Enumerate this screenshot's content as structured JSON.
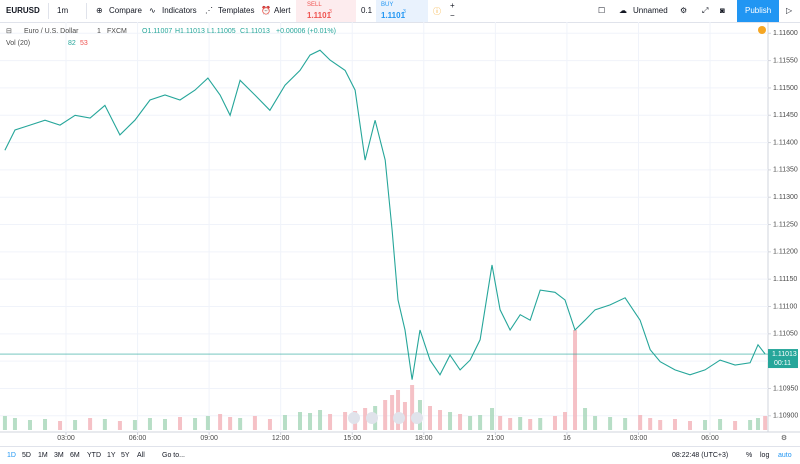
{
  "toolbar": {
    "symbol": "EURUSD",
    "interval": "1m",
    "compare": "Compare",
    "indicators": "Indicators",
    "templates": "Templates",
    "alert": "Alert",
    "sell": "SELL",
    "sell_price": "1.1101",
    "sell_sup": "3",
    "spread": "0.1",
    "buy": "BUY",
    "buy_price": "1.1101",
    "buy_sup": "3",
    "layout": "Unnamed",
    "publish": "Publish"
  },
  "legend": {
    "name": "Euro / U.S. Dollar",
    "interval": "1",
    "exchange": "FXCM",
    "open": "O1.11007",
    "high": "H1.11013",
    "low": "L1.11005",
    "close": "C1.11013",
    "change": "+0.00006 (+0.01%)",
    "volume": "Vol (20)",
    "vol_a": "82",
    "vol_b": "53"
  },
  "chart_data": {
    "type": "line",
    "x": [
      0.44,
      0.86,
      1.49,
      2.12,
      2.75,
      3.38,
      4.01,
      4.63,
      5.26,
      5.89,
      6.52,
      7.15,
      7.78,
      8.41,
      8.95,
      9.46,
      9.88,
      10.3,
      10.92,
      11.55,
      12.18,
      12.81,
      13.23,
      13.65,
      14.07,
      14.7,
      15.12,
      15.54,
      15.96,
      16.38,
      16.67,
      16.92,
      17.21,
      17.51,
      17.84,
      18.26,
      18.68,
      19.1,
      19.52,
      19.94,
      20.36,
      20.86,
      21.2,
      21.62,
      22.04,
      22.46,
      22.88,
      23.5,
      23.92,
      24.34,
      24.76,
      25.18,
      25.81,
      26.44,
      27.07,
      27.49,
      27.91,
      28.53,
      29.16,
      29.79,
      30.42,
      31.05,
      31.68,
      32.01,
      32.31
    ],
    "series": [
      {
        "name": "EURUSD",
        "color": "#26a69a",
        "values": [
          1.11386,
          1.11423,
          1.11432,
          1.11441,
          1.11432,
          1.1145,
          1.11445,
          1.11468,
          1.11414,
          1.11441,
          1.11478,
          1.11487,
          1.11478,
          1.11496,
          1.11518,
          1.11487,
          1.1145,
          1.11514,
          1.11487,
          1.11459,
          1.11505,
          1.11532,
          1.1156,
          1.11569,
          1.11551,
          1.11532,
          1.11496,
          1.11368,
          1.11441,
          1.11368,
          1.1124,
          1.11112,
          1.11057,
          1.10966,
          1.11057,
          1.11002,
          1.10975,
          1.11011,
          1.10984,
          1.11002,
          1.11039,
          1.11176,
          1.11094,
          1.11057,
          1.11085,
          1.11075,
          1.1113,
          1.11126,
          1.11112,
          1.11057,
          1.11075,
          1.11094,
          1.11103,
          1.11116,
          1.11075,
          1.11021,
          1.10999,
          1.10984,
          1.10975,
          1.10984,
          1.11002,
          1.10993,
          1.10997,
          1.1103,
          1.11013
        ]
      },
      {
        "name": "Vol",
        "color": "#a5d6b8",
        "values": [
          14,
          12,
          10,
          11,
          9,
          10,
          12,
          11,
          9,
          10,
          12,
          11,
          13,
          12,
          14,
          16,
          13,
          12,
          14,
          11,
          15,
          18,
          17,
          20,
          16,
          18,
          19,
          22,
          24,
          30,
          35,
          40,
          28,
          45,
          30,
          24,
          20,
          18,
          16,
          14,
          15,
          22,
          14,
          12,
          13,
          11,
          12,
          14,
          18,
          100,
          22,
          14,
          13,
          12,
          15,
          12,
          10,
          11,
          9,
          10,
          11,
          9,
          10,
          12,
          14
        ]
      }
    ],
    "xlim": [
      0.233,
      32.43
    ],
    "xticks": [
      {
        "value": 3,
        "label": "03:00"
      },
      {
        "value": 6,
        "label": "06:00"
      },
      {
        "value": 9,
        "label": "09:00"
      },
      {
        "value": 12,
        "label": "12:00"
      },
      {
        "value": 15,
        "label": "15:00"
      },
      {
        "value": 18,
        "label": "18:00"
      },
      {
        "value": 21,
        "label": "21:00"
      },
      {
        "value": 24,
        "label": "16"
      },
      {
        "value": 27,
        "label": "03:00"
      },
      {
        "value": 30,
        "label": "06:00"
      }
    ],
    "ylim": [
      1.10874,
      1.11617
    ],
    "yticks": [
      {
        "value": 1.109,
        "label": "1.10900"
      },
      {
        "value": 1.1095,
        "label": "1.10950"
      },
      {
        "value": 1.11,
        "label": "1.11000"
      },
      {
        "value": 1.1105,
        "label": "1.11050"
      },
      {
        "value": 1.111,
        "label": "1.11100"
      },
      {
        "value": 1.1115,
        "label": "1.11150"
      },
      {
        "value": 1.112,
        "label": "1.11200"
      },
      {
        "value": 1.1125,
        "label": "1.11250"
      },
      {
        "value": 1.113,
        "label": "1.11300"
      },
      {
        "value": 1.1135,
        "label": "1.11350"
      },
      {
        "value": 1.114,
        "label": "1.11400"
      },
      {
        "value": 1.1145,
        "label": "1.11450"
      },
      {
        "value": 1.115,
        "label": "1.11500"
      },
      {
        "value": 1.1155,
        "label": "1.11550"
      },
      {
        "value": 1.116,
        "label": "1.11600"
      }
    ],
    "vlim": [
      0,
      100
    ],
    "grid": true,
    "last_price": {
      "value": 1.11013,
      "label": "1.11013"
    },
    "countdown": "00:11"
  },
  "bottom": {
    "ranges": [
      "1D",
      "5D",
      "1M",
      "3M",
      "6M",
      "YTD",
      "1Y",
      "5Y",
      "All"
    ],
    "goto": "Go to...",
    "clock": "08:22:48 (UTC+3)",
    "percent": "%",
    "log": "log",
    "auto": "auto"
  }
}
